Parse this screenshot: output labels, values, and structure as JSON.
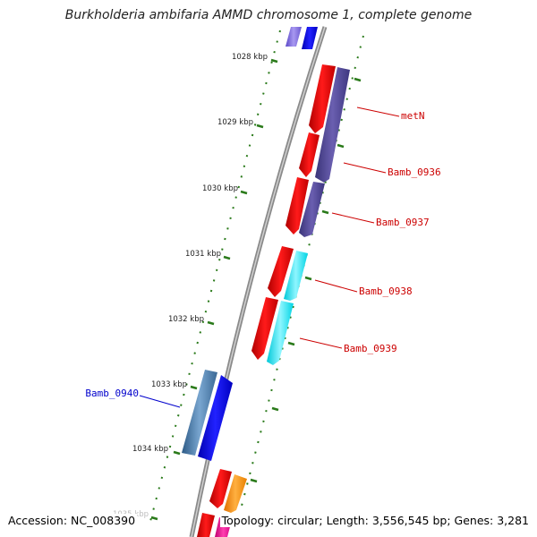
{
  "title": "Burkholderia ambifaria AMMD chromosome 1, complete genome",
  "footer": {
    "accession": "Accession: NC_008390",
    "summary": "Topology: circular; Length: 3,556,545 bp; Genes: 3,281"
  },
  "colors": {
    "backbone": "#8a8a8a",
    "tick": "#2a7a1a",
    "label_red": "#cc0000",
    "label_blue": "#0000cc"
  },
  "ticks": [
    {
      "label": "1028 kbp"
    },
    {
      "label": "1029 kbp"
    },
    {
      "label": "1030 kbp"
    },
    {
      "label": "1031 kbp"
    },
    {
      "label": "1032 kbp"
    },
    {
      "label": "1033 kbp"
    },
    {
      "label": "1034 kbp"
    },
    {
      "label": "1035 kbp"
    }
  ],
  "gene_labels": [
    {
      "text": "metN",
      "color": "#cc0000"
    },
    {
      "text": "Bamb_0936",
      "color": "#cc0000"
    },
    {
      "text": "Bamb_0937",
      "color": "#cc0000"
    },
    {
      "text": "Bamb_0938",
      "color": "#cc0000"
    },
    {
      "text": "Bamb_0939",
      "color": "#cc0000"
    },
    {
      "text": "Bamb_0940",
      "color": "#0000cc"
    }
  ]
}
